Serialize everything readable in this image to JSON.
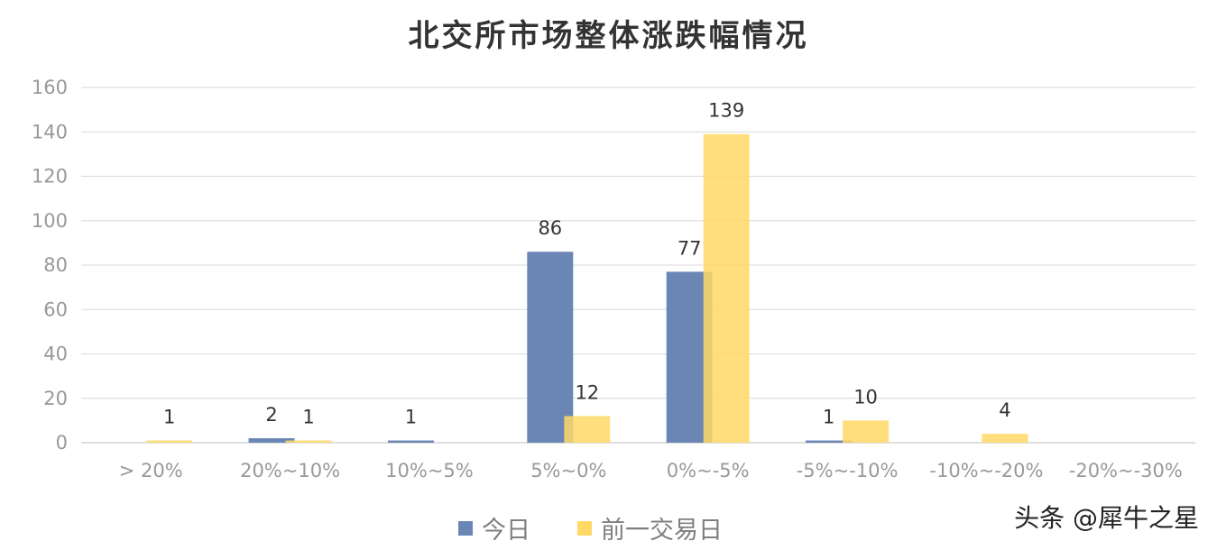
{
  "chart_data": {
    "type": "bar",
    "title": "北交所市场整体涨跌幅情况",
    "categories": [
      "> 20%",
      "20%~10%",
      "10%~5%",
      "5%~0%",
      "0%~-5%",
      "-5%~-10%",
      "-10%~-20%",
      "-20%~-30%"
    ],
    "series": [
      {
        "name": "今日",
        "color": "#6a86b5",
        "values": [
          0,
          2,
          1,
          86,
          77,
          1,
          0,
          0
        ],
        "labels": [
          "",
          "2",
          "1",
          "86",
          "77",
          "1",
          "",
          ""
        ]
      },
      {
        "name": "前一交易日",
        "color": "#ffd966",
        "values": [
          1,
          1,
          0,
          12,
          139,
          10,
          4,
          0
        ],
        "labels": [
          "1",
          "1",
          "",
          "12",
          "139",
          "10",
          "4",
          ""
        ]
      }
    ],
    "ylim": [
      0,
      160
    ],
    "yticks": [
      0,
      20,
      40,
      60,
      80,
      100,
      120,
      140,
      160
    ],
    "grid": true,
    "legend_position": "bottom"
  },
  "watermark": "头条 @犀牛之星"
}
